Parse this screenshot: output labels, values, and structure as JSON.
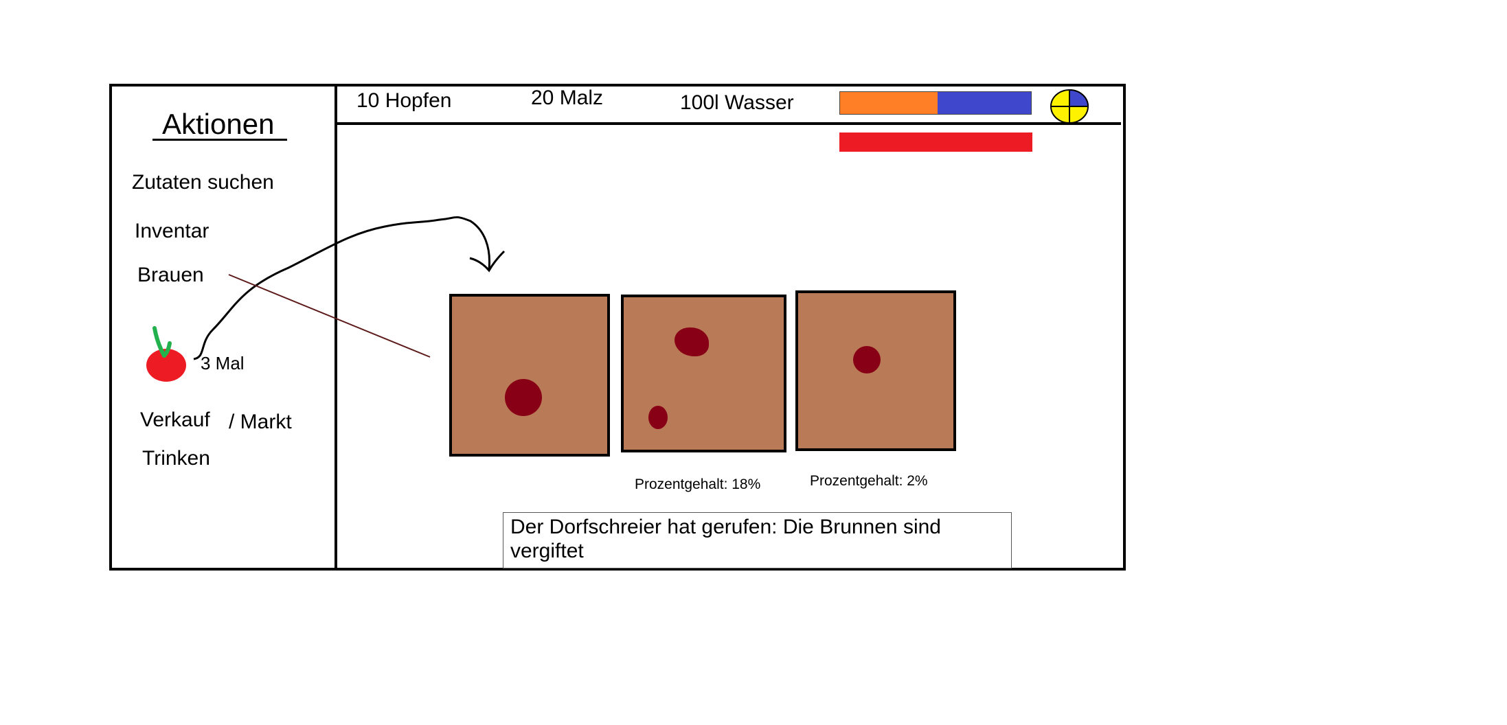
{
  "sidebar": {
    "title": "Aktionen",
    "items": [
      {
        "label": "Zutaten suchen"
      },
      {
        "label": "Inventar"
      },
      {
        "label": "Brauen"
      },
      {
        "label": "Verkauf"
      },
      {
        "label": "/ Markt"
      },
      {
        "label": "Trinken"
      }
    ],
    "cherry": {
      "icon": "cherry-icon",
      "count_label": "3 Mal"
    }
  },
  "resources": {
    "hopfen": "10 Hopfen",
    "malz": "20 Malz",
    "wasser": "100l Wasser"
  },
  "status": {
    "orange_bar_fraction": 0.51,
    "colors": {
      "orange": "#ff7f27",
      "blue": "#3f48cc",
      "red": "#ed1c24"
    },
    "clock_icon": "clock-icon"
  },
  "brewing": {
    "box_color": "#b97a57",
    "spot_color": "#880015",
    "boxes": [
      {
        "percent_label": ""
      },
      {
        "percent_label": "Prozentgehalt: 18%"
      },
      {
        "percent_label": "Prozentgehalt: 2%"
      }
    ]
  },
  "message": "Der Dorfschreier hat gerufen: Die Brunnen sind vergiftet"
}
